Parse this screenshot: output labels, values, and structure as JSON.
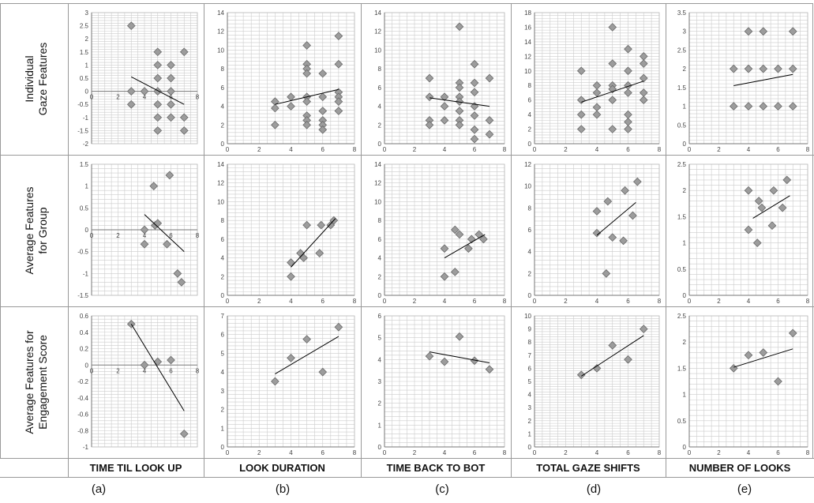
{
  "row_labels": [
    [
      "Individual",
      "Gaze Features"
    ],
    [
      "Average Features",
      "for Group"
    ],
    [
      "Average Features for",
      "Engagement Score"
    ]
  ],
  "column_labels": [
    "TIME TIL LOOK  UP",
    "LOOK DURATION",
    "TIME BACK TO BOT",
    "TOTAL GAZE SHIFTS",
    "NUMBER OF LOOKS"
  ],
  "panel_labels": [
    "(a)",
    "(b)",
    "(c)",
    "(d)",
    "(e)"
  ],
  "style": {
    "marker_fill": "#9c9c9c",
    "marker_stroke": "#6a6a6a",
    "line_color": "#000000",
    "grid_color": "#cccccc"
  },
  "chart_data": [
    {
      "type": "scatter",
      "row": 0,
      "col": 0,
      "xlim": [
        0,
        8
      ],
      "ylim": [
        -2,
        3
      ],
      "x_ticks": [
        0,
        2,
        4,
        6,
        8
      ],
      "y_ticks": [
        -2,
        -1.5,
        -1,
        -0.5,
        0,
        0.5,
        1,
        1.5,
        2,
        2.5,
        3
      ],
      "points": [
        [
          3,
          2.5
        ],
        [
          3,
          0
        ],
        [
          3,
          -0.5
        ],
        [
          4,
          0
        ],
        [
          5,
          1.5
        ],
        [
          5,
          1
        ],
        [
          5,
          0.5
        ],
        [
          5,
          0
        ],
        [
          5,
          -0.5
        ],
        [
          5,
          -1
        ],
        [
          5,
          -1.5
        ],
        [
          6,
          1
        ],
        [
          6,
          0.5
        ],
        [
          6,
          0
        ],
        [
          6,
          -0.5
        ],
        [
          6,
          -1
        ],
        [
          7,
          1.5
        ],
        [
          7,
          -1
        ],
        [
          7,
          -1.5
        ]
      ],
      "trendline": [
        [
          3,
          0.55
        ],
        [
          7,
          -0.5
        ]
      ]
    },
    {
      "type": "scatter",
      "row": 0,
      "col": 1,
      "xlim": [
        0,
        8
      ],
      "ylim": [
        0,
        14
      ],
      "x_ticks": [
        0,
        2,
        4,
        6,
        8
      ],
      "y_ticks": [
        0,
        2,
        4,
        6,
        8,
        10,
        12,
        14
      ],
      "points": [
        [
          3,
          4.5
        ],
        [
          3,
          3.8
        ],
        [
          3,
          2
        ],
        [
          4,
          5
        ],
        [
          4,
          4
        ],
        [
          5,
          10.5
        ],
        [
          5,
          8.5
        ],
        [
          5,
          8
        ],
        [
          5,
          7.5
        ],
        [
          5,
          5
        ],
        [
          5,
          4.5
        ],
        [
          5,
          3
        ],
        [
          5,
          2.5
        ],
        [
          5,
          2
        ],
        [
          6,
          7.5
        ],
        [
          6,
          5
        ],
        [
          6,
          3.5
        ],
        [
          6,
          2.5
        ],
        [
          6,
          2
        ],
        [
          6,
          1.5
        ],
        [
          7,
          11.5
        ],
        [
          7,
          8.5
        ],
        [
          7,
          5.5
        ],
        [
          7,
          5
        ],
        [
          7,
          4.5
        ],
        [
          7,
          3.5
        ]
      ],
      "trendline": [
        [
          3,
          4.2
        ],
        [
          7,
          5.8
        ]
      ]
    },
    {
      "type": "scatter",
      "row": 0,
      "col": 2,
      "xlim": [
        0,
        8
      ],
      "ylim": [
        0,
        14
      ],
      "x_ticks": [
        0,
        2,
        4,
        6,
        8
      ],
      "y_ticks": [
        0,
        2,
        4,
        6,
        8,
        10,
        12,
        14
      ],
      "points": [
        [
          3,
          7
        ],
        [
          3,
          5
        ],
        [
          3,
          2.5
        ],
        [
          3,
          2
        ],
        [
          4,
          5
        ],
        [
          4,
          4
        ],
        [
          4,
          2.5
        ],
        [
          5,
          12.5
        ],
        [
          5,
          6.5
        ],
        [
          5,
          6
        ],
        [
          5,
          5
        ],
        [
          5,
          4.5
        ],
        [
          5,
          3.5
        ],
        [
          5,
          2.5
        ],
        [
          5,
          2
        ],
        [
          6,
          8.5
        ],
        [
          6,
          6.5
        ],
        [
          6,
          5.5
        ],
        [
          6,
          4
        ],
        [
          6,
          3
        ],
        [
          6,
          1.5
        ],
        [
          6,
          0.5
        ],
        [
          7,
          7
        ],
        [
          7,
          2.5
        ],
        [
          7,
          1
        ]
      ],
      "trendline": [
        [
          3,
          4.9
        ],
        [
          7,
          4
        ]
      ]
    },
    {
      "type": "scatter",
      "row": 0,
      "col": 3,
      "xlim": [
        0,
        8
      ],
      "ylim": [
        0,
        18
      ],
      "x_ticks": [
        0,
        2,
        4,
        6,
        8
      ],
      "y_ticks": [
        0,
        2,
        4,
        6,
        8,
        10,
        12,
        14,
        16,
        18
      ],
      "points": [
        [
          3,
          10
        ],
        [
          3,
          6
        ],
        [
          3,
          4
        ],
        [
          3,
          2
        ],
        [
          4,
          8
        ],
        [
          4,
          7
        ],
        [
          4,
          5
        ],
        [
          4,
          4
        ],
        [
          5,
          16
        ],
        [
          5,
          11
        ],
        [
          5,
          8
        ],
        [
          5,
          7.5
        ],
        [
          5,
          6
        ],
        [
          5,
          2
        ],
        [
          6,
          13
        ],
        [
          6,
          10
        ],
        [
          6,
          8
        ],
        [
          6,
          7
        ],
        [
          6,
          4
        ],
        [
          6,
          3
        ],
        [
          6,
          2
        ],
        [
          7,
          12
        ],
        [
          7,
          11
        ],
        [
          7,
          9
        ],
        [
          7,
          7
        ],
        [
          7,
          6
        ]
      ],
      "trendline": [
        [
          3,
          5.7
        ],
        [
          7,
          8.6
        ]
      ]
    },
    {
      "type": "scatter",
      "row": 0,
      "col": 4,
      "xlim": [
        0,
        8
      ],
      "ylim": [
        0,
        3.5
      ],
      "x_ticks": [
        0,
        2,
        4,
        6,
        8
      ],
      "y_ticks": [
        0,
        0.5,
        1,
        1.5,
        2,
        2.5,
        3,
        3.5
      ],
      "points": [
        [
          3,
          2
        ],
        [
          3,
          1
        ],
        [
          4,
          3
        ],
        [
          4,
          2
        ],
        [
          4,
          1
        ],
        [
          5,
          3
        ],
        [
          5,
          2
        ],
        [
          5,
          1
        ],
        [
          6,
          2
        ],
        [
          6,
          1
        ],
        [
          7,
          3
        ],
        [
          7,
          2
        ],
        [
          7,
          1
        ]
      ],
      "trendline": [
        [
          3,
          1.55
        ],
        [
          7,
          1.85
        ]
      ]
    },
    {
      "type": "scatter",
      "row": 1,
      "col": 0,
      "xlim": [
        0,
        8
      ],
      "ylim": [
        -1.5,
        1.5
      ],
      "x_ticks": [
        0,
        2,
        4,
        6,
        8
      ],
      "y_ticks": [
        -1.5,
        -1,
        -0.5,
        0,
        0.5,
        1,
        1.5
      ],
      "points": [
        [
          4,
          0
        ],
        [
          4,
          -0.33
        ],
        [
          4.7,
          1
        ],
        [
          4.8,
          0.1
        ],
        [
          5,
          0.15
        ],
        [
          5.7,
          -0.33
        ],
        [
          5.9,
          1.25
        ],
        [
          6.5,
          -1
        ],
        [
          6.8,
          -1.2
        ]
      ],
      "trendline": [
        [
          4,
          0.35
        ],
        [
          7,
          -0.5
        ]
      ]
    },
    {
      "type": "scatter",
      "row": 1,
      "col": 1,
      "xlim": [
        0,
        8
      ],
      "ylim": [
        0,
        14
      ],
      "x_ticks": [
        0,
        2,
        4,
        6,
        8
      ],
      "y_ticks": [
        0,
        2,
        4,
        6,
        8,
        10,
        12,
        14
      ],
      "points": [
        [
          4,
          2
        ],
        [
          4,
          3.5
        ],
        [
          4.6,
          4.5
        ],
        [
          4.8,
          4
        ],
        [
          5,
          7.5
        ],
        [
          5.8,
          4.5
        ],
        [
          5.9,
          7.5
        ],
        [
          6.5,
          7.5
        ],
        [
          6.7,
          8
        ]
      ],
      "trendline": [
        [
          4,
          3
        ],
        [
          6.8,
          8.2
        ]
      ]
    },
    {
      "type": "scatter",
      "row": 1,
      "col": 2,
      "xlim": [
        0,
        8
      ],
      "ylim": [
        0,
        14
      ],
      "x_ticks": [
        0,
        2,
        4,
        6,
        8
      ],
      "y_ticks": [
        0,
        2,
        4,
        6,
        8,
        10,
        12,
        14
      ],
      "points": [
        [
          4,
          2
        ],
        [
          4,
          5
        ],
        [
          4.7,
          2.5
        ],
        [
          4.7,
          7
        ],
        [
          5,
          6.5
        ],
        [
          5.6,
          5
        ],
        [
          5.8,
          6
        ],
        [
          6.3,
          6.5
        ],
        [
          6.6,
          6
        ]
      ],
      "trendline": [
        [
          4,
          4
        ],
        [
          6.7,
          6.5
        ]
      ]
    },
    {
      "type": "scatter",
      "row": 1,
      "col": 3,
      "xlim": [
        0,
        8
      ],
      "ylim": [
        0,
        12
      ],
      "x_ticks": [
        0,
        2,
        4,
        6,
        8
      ],
      "y_ticks": [
        0,
        2,
        4,
        6,
        8,
        10,
        12
      ],
      "points": [
        [
          4,
          7.7
        ],
        [
          4,
          5.7
        ],
        [
          4.6,
          2
        ],
        [
          4.7,
          8.6
        ],
        [
          5,
          5.3
        ],
        [
          5.7,
          5
        ],
        [
          5.8,
          9.6
        ],
        [
          6.3,
          7.3
        ],
        [
          6.6,
          10.4
        ]
      ],
      "trendline": [
        [
          4,
          5.5
        ],
        [
          6.5,
          8.5
        ]
      ]
    },
    {
      "type": "scatter",
      "row": 1,
      "col": 4,
      "xlim": [
        0,
        8
      ],
      "ylim": [
        0,
        2.5
      ],
      "x_ticks": [
        0,
        2,
        4,
        6,
        8
      ],
      "y_ticks": [
        0,
        0.5,
        1,
        1.5,
        2,
        2.5
      ],
      "points": [
        [
          4,
          2
        ],
        [
          4,
          1.25
        ],
        [
          4.6,
          1
        ],
        [
          4.7,
          1.8
        ],
        [
          4.9,
          1.67
        ],
        [
          5.6,
          1.33
        ],
        [
          5.7,
          2
        ],
        [
          6.3,
          1.67
        ],
        [
          6.6,
          2.2
        ]
      ],
      "trendline": [
        [
          4.3,
          1.47
        ],
        [
          6.8,
          1.9
        ]
      ]
    },
    {
      "type": "scatter",
      "row": 2,
      "col": 0,
      "xlim": [
        0,
        8
      ],
      "ylim": [
        -1,
        0.6
      ],
      "x_ticks": [
        0,
        2,
        4,
        6,
        8
      ],
      "y_ticks": [
        -1,
        -0.8,
        -0.6,
        -0.4,
        -0.2,
        0,
        0.2,
        0.4,
        0.6
      ],
      "points": [
        [
          3,
          0.5
        ],
        [
          4,
          0
        ],
        [
          5,
          0.04
        ],
        [
          6,
          0.06
        ],
        [
          7,
          -0.84
        ]
      ],
      "trendline": [
        [
          3,
          0.5
        ],
        [
          7,
          -0.56
        ]
      ]
    },
    {
      "type": "scatter",
      "row": 2,
      "col": 1,
      "xlim": [
        0,
        8
      ],
      "ylim": [
        0,
        7
      ],
      "x_ticks": [
        0,
        2,
        4,
        6,
        8
      ],
      "y_ticks": [
        0,
        1,
        2,
        3,
        4,
        5,
        6,
        7
      ],
      "points": [
        [
          3,
          3.5
        ],
        [
          4,
          4.75
        ],
        [
          5,
          5.75
        ],
        [
          6,
          4
        ],
        [
          7,
          6.4
        ]
      ],
      "trendline": [
        [
          3,
          3.9
        ],
        [
          7,
          5.9
        ]
      ]
    },
    {
      "type": "scatter",
      "row": 2,
      "col": 2,
      "xlim": [
        0,
        8
      ],
      "ylim": [
        0,
        6
      ],
      "x_ticks": [
        0,
        2,
        4,
        6,
        8
      ],
      "y_ticks": [
        0,
        1,
        2,
        3,
        4,
        5,
        6
      ],
      "points": [
        [
          3,
          4.15
        ],
        [
          4,
          3.9
        ],
        [
          5,
          5.05
        ],
        [
          6,
          3.95
        ],
        [
          7,
          3.55
        ]
      ],
      "trendline": [
        [
          3,
          4.35
        ],
        [
          7,
          3.85
        ]
      ]
    },
    {
      "type": "scatter",
      "row": 2,
      "col": 3,
      "xlim": [
        0,
        8
      ],
      "ylim": [
        0,
        10
      ],
      "x_ticks": [
        0,
        2,
        4,
        6,
        8
      ],
      "y_ticks": [
        0,
        1,
        2,
        3,
        4,
        5,
        6,
        7,
        8,
        9,
        10
      ],
      "points": [
        [
          3,
          5.5
        ],
        [
          4,
          6
        ],
        [
          5,
          7.75
        ],
        [
          6,
          6.67
        ],
        [
          7,
          9
        ]
      ],
      "trendline": [
        [
          3,
          5.4
        ],
        [
          7,
          8.5
        ]
      ]
    },
    {
      "type": "scatter",
      "row": 2,
      "col": 4,
      "xlim": [
        0,
        8
      ],
      "ylim": [
        0,
        2.5
      ],
      "x_ticks": [
        0,
        2,
        4,
        6,
        8
      ],
      "y_ticks": [
        0,
        0.5,
        1,
        1.5,
        2,
        2.5
      ],
      "points": [
        [
          3,
          1.5
        ],
        [
          4,
          1.75
        ],
        [
          5,
          1.8
        ],
        [
          6,
          1.25
        ],
        [
          7,
          2.17
        ]
      ],
      "trendline": [
        [
          3,
          1.52
        ],
        [
          7,
          1.87
        ]
      ]
    }
  ]
}
